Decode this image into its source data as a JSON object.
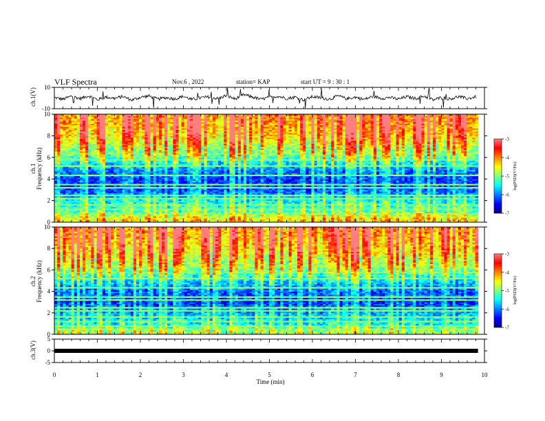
{
  "header": {
    "title": "VLF Spectra",
    "date": "Nov.6 , 2022",
    "station": "station= KAP",
    "start_ut": "start UT = 9 : 30 : 1"
  },
  "colors": {
    "colormap": [
      "#00007f",
      "#0000ff",
      "#00ffff",
      "#ffff00",
      "#ff0000",
      "#ff7f7f"
    ],
    "waveform": "#000000",
    "axes": "#000000"
  },
  "chart_data": [
    {
      "type": "line",
      "panel": "ch.1 waveform",
      "ylabel": "ch.1(V)",
      "xlabel": "Time (min)",
      "xlim": [
        0,
        10
      ],
      "xticks": [
        "0",
        "1",
        "2",
        "3",
        "4",
        "5",
        "6",
        "7",
        "8",
        "9",
        "10"
      ],
      "ylim": [
        -10,
        10
      ],
      "yticks": [
        "10",
        "-10"
      ],
      "x": [
        0.0,
        0.2,
        0.4,
        0.6,
        0.8,
        1.0,
        1.2,
        1.4,
        1.6,
        1.8,
        2.0,
        2.2,
        2.4,
        2.6,
        2.8,
        3.0,
        3.2,
        3.4,
        3.6,
        3.8,
        4.0,
        4.2,
        4.4,
        4.6,
        4.8,
        5.0,
        5.2,
        5.4,
        5.6,
        5.8,
        6.0,
        6.2,
        6.4,
        6.6,
        6.8,
        7.0,
        7.2,
        7.4,
        7.6,
        7.8,
        8.0,
        8.2,
        8.4,
        8.6,
        8.8,
        9.0,
        9.2,
        9.4,
        9.6,
        9.8
      ],
      "y": [
        0.5,
        -1.2,
        1.8,
        -0.5,
        2.1,
        -1.6,
        0.9,
        -0.3,
        1.4,
        -2.0,
        0.7,
        1.9,
        -1.1,
        0.4,
        -0.8,
        1.6,
        -1.5,
        0.2,
        1.1,
        -0.6,
        2.3,
        -0.9,
        3.2,
        1.0,
        -1.3,
        0.6,
        1.7,
        -0.4,
        0.9,
        -1.8,
        1.3,
        0.1,
        -1.0,
        2.0,
        -0.7,
        0.8,
        -1.4,
        1.5,
        -0.2,
        0.6,
        -1.1,
        1.2,
        -0.5,
        1.9,
        -1.7,
        0.3,
        -0.9,
        1.4,
        -0.6,
        1.1
      ]
    },
    {
      "type": "heatmap",
      "panel": "ch.1 spectrogram",
      "channel_label": "ch.1",
      "ylabel": "Frequency (kHz)",
      "xlim": [
        0,
        9.85
      ],
      "ylim": [
        0,
        10
      ],
      "yticks": [
        "0",
        "2",
        "4",
        "6",
        "8",
        "10"
      ],
      "colorbar": {
        "label": "log(PSD)(V²/Hz)",
        "range": [
          -7,
          -3
        ],
        "ticks": [
          "-3",
          "-4",
          "-5",
          "-6",
          "-7"
        ]
      },
      "freq_profile_log_psd": [
        {
          "f_khz": 0.3,
          "log_psd": -4.6
        },
        {
          "f_khz": 1.0,
          "log_psd": -5.3
        },
        {
          "f_khz": 2.0,
          "log_psd": -5.6
        },
        {
          "f_khz": 3.0,
          "log_psd": -6.3
        },
        {
          "f_khz": 4.0,
          "log_psd": -6.4
        },
        {
          "f_khz": 5.0,
          "log_psd": -6.0
        },
        {
          "f_khz": 6.0,
          "log_psd": -5.3
        },
        {
          "f_khz": 7.0,
          "log_psd": -4.9
        },
        {
          "f_khz": 8.0,
          "log_psd": -4.5
        },
        {
          "f_khz": 9.0,
          "log_psd": -4.3
        },
        {
          "f_khz": 10.0,
          "log_psd": -4.2
        }
      ]
    },
    {
      "type": "heatmap",
      "panel": "ch.2 spectrogram",
      "channel_label": "ch.2",
      "ylabel": "Frequency (kHz)",
      "xlim": [
        0,
        9.85
      ],
      "ylim": [
        0,
        10
      ],
      "yticks": [
        "0",
        "2",
        "4",
        "6",
        "8",
        "10"
      ],
      "colorbar": {
        "label": "log(PSD)(V²/Hz)",
        "range": [
          -7,
          -3
        ],
        "ticks": [
          "-3",
          "-4",
          "-5",
          "-6",
          "-7"
        ]
      },
      "freq_profile_log_psd": [
        {
          "f_khz": 0.3,
          "log_psd": -5.0
        },
        {
          "f_khz": 1.0,
          "log_psd": -5.6
        },
        {
          "f_khz": 2.0,
          "log_psd": -5.9
        },
        {
          "f_khz": 3.0,
          "log_psd": -6.4
        },
        {
          "f_khz": 4.0,
          "log_psd": -6.2
        },
        {
          "f_khz": 5.0,
          "log_psd": -5.7
        },
        {
          "f_khz": 6.0,
          "log_psd": -5.1
        },
        {
          "f_khz": 7.0,
          "log_psd": -4.8
        },
        {
          "f_khz": 8.0,
          "log_psd": -4.5
        },
        {
          "f_khz": 9.0,
          "log_psd": -4.3
        },
        {
          "f_khz": 10.0,
          "log_psd": -4.2
        }
      ]
    },
    {
      "type": "line",
      "panel": "ch.3 waveform",
      "ylabel": "ch.3(V)",
      "ylim": [
        -5,
        5
      ],
      "yticks": [
        "5",
        "0",
        "-5"
      ],
      "x": [
        0,
        9.85
      ],
      "y": [
        0,
        0
      ]
    }
  ]
}
